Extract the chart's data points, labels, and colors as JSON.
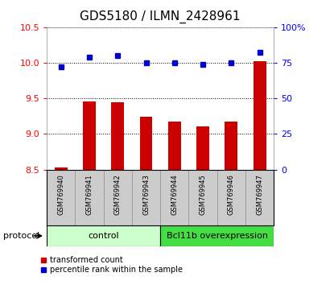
{
  "title": "GDS5180 / ILMN_2428961",
  "samples": [
    "GSM769940",
    "GSM769941",
    "GSM769942",
    "GSM769943",
    "GSM769944",
    "GSM769945",
    "GSM769946",
    "GSM769947"
  ],
  "bar_values": [
    8.53,
    9.46,
    9.44,
    9.24,
    9.17,
    9.11,
    9.17,
    10.02
  ],
  "dot_values": [
    72,
    79,
    80,
    75,
    75,
    74,
    75,
    82
  ],
  "ylim_left": [
    8.5,
    10.5
  ],
  "ylim_right": [
    0,
    100
  ],
  "yticks_left": [
    8.5,
    9.0,
    9.5,
    10.0,
    10.5
  ],
  "yticks_right": [
    0,
    25,
    50,
    75,
    100
  ],
  "bar_color": "#cc0000",
  "dot_color": "#0000cc",
  "bg_color": "#ffffff",
  "protocol_labels": [
    "control",
    "Bcl11b overexpression"
  ],
  "protocol_n": [
    4,
    4
  ],
  "protocol_colors": [
    "#ccffcc",
    "#44dd44"
  ],
  "legend_bar_label": "transformed count",
  "legend_dot_label": "percentile rank within the sample",
  "xlabel_protocol": "protocol",
  "sample_panel_color": "#cccccc",
  "title_fontsize": 11,
  "tick_fontsize": 8,
  "label_fontsize": 7,
  "protocol_fontsize": 8
}
